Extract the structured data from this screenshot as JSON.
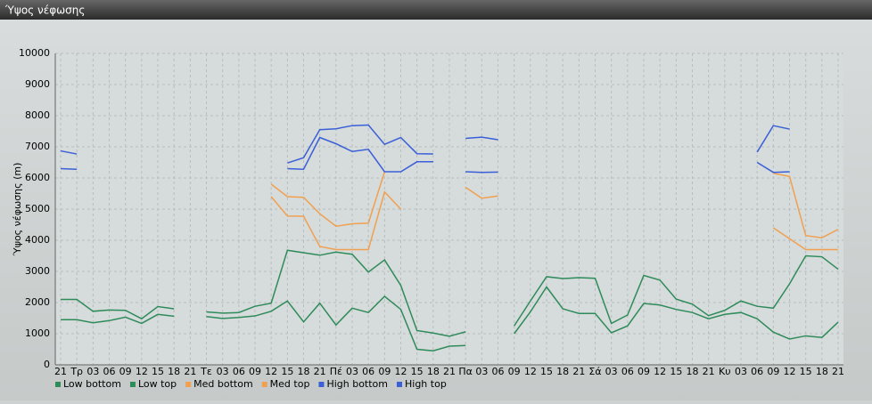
{
  "window_title": "Ύψος νέφωσης",
  "chart_data": {
    "type": "line",
    "y_label": "Ύψος νέφωσης (m)",
    "categories": [
      "21",
      "Τρ",
      "03",
      "06",
      "09",
      "12",
      "15",
      "18",
      "21",
      "Τε",
      "03",
      "06",
      "09",
      "12",
      "15",
      "18",
      "21",
      "Πέ",
      "03",
      "06",
      "09",
      "12",
      "15",
      "18",
      "21",
      "Πα",
      "03",
      "06",
      "09",
      "12",
      "15",
      "18",
      "21",
      "Σά",
      "03",
      "06",
      "09",
      "12",
      "15",
      "18",
      "21",
      "Κυ",
      "03",
      "06",
      "09",
      "12",
      "15",
      "18",
      "21"
    ],
    "series": [
      {
        "name": "Low bottom",
        "color": "#2e8b5a",
        "values": [
          1450,
          1450,
          1350,
          1420,
          1530,
          1330,
          1620,
          1560,
          null,
          1550,
          1490,
          1520,
          1570,
          1720,
          2050,
          1380,
          1980,
          1280,
          1820,
          1680,
          2200,
          1780,
          500,
          450,
          600,
          620,
          null,
          null,
          1000,
          1700,
          2500,
          1800,
          1650,
          1650,
          1030,
          1250,
          1970,
          1920,
          1780,
          1680,
          1480,
          1620,
          1680,
          1480,
          1050,
          830,
          930,
          880,
          1370
        ]
      },
      {
        "name": "Low top",
        "color": "#2e8b5a",
        "values": [
          2100,
          2100,
          1720,
          1760,
          1750,
          1480,
          1870,
          1800,
          null,
          1700,
          1660,
          1680,
          1880,
          1980,
          3680,
          3600,
          3520,
          3620,
          3550,
          2980,
          3370,
          2550,
          1100,
          1020,
          920,
          1060,
          null,
          null,
          1250,
          2050,
          2830,
          2770,
          2800,
          2780,
          1330,
          1600,
          2870,
          2720,
          2110,
          1950,
          1580,
          1750,
          2050,
          1880,
          1820,
          2600,
          3500,
          3470,
          3070
        ]
      },
      {
        "name": "Med bottom",
        "color": "#f0a050",
        "values": [
          null,
          null,
          null,
          null,
          null,
          null,
          null,
          null,
          null,
          null,
          null,
          null,
          null,
          5400,
          4780,
          4770,
          3800,
          3700,
          3700,
          3700,
          5550,
          5000,
          null,
          null,
          null,
          5700,
          5350,
          5420,
          null,
          null,
          null,
          null,
          null,
          null,
          null,
          null,
          null,
          null,
          null,
          null,
          null,
          null,
          null,
          null,
          4400,
          4050,
          3700,
          3700,
          3700
        ]
      },
      {
        "name": "Med top",
        "color": "#f0a050",
        "values": [
          null,
          null,
          null,
          null,
          null,
          null,
          null,
          null,
          null,
          null,
          null,
          null,
          null,
          5800,
          5400,
          5380,
          4850,
          4450,
          4530,
          4550,
          6200,
          null,
          null,
          null,
          null,
          null,
          null,
          null,
          null,
          null,
          null,
          null,
          null,
          null,
          null,
          null,
          null,
          null,
          null,
          null,
          null,
          null,
          null,
          null,
          6150,
          6050,
          4150,
          4080,
          4350
        ]
      },
      {
        "name": "High bottom",
        "color": "#3a5fd8",
        "values": [
          6300,
          6280,
          null,
          null,
          null,
          null,
          null,
          null,
          null,
          null,
          null,
          null,
          null,
          null,
          6300,
          6280,
          7300,
          7100,
          6850,
          6920,
          6200,
          6200,
          6520,
          6520,
          null,
          6200,
          6180,
          6190,
          null,
          null,
          null,
          null,
          null,
          null,
          null,
          null,
          null,
          null,
          null,
          null,
          null,
          null,
          null,
          6500,
          6180,
          6200,
          null,
          null,
          null
        ]
      },
      {
        "name": "High top",
        "color": "#3a5fd8",
        "values": [
          6870,
          6770,
          null,
          null,
          null,
          null,
          null,
          null,
          null,
          null,
          null,
          null,
          null,
          null,
          6480,
          6650,
          7550,
          7580,
          7680,
          7700,
          7080,
          7300,
          6780,
          6770,
          null,
          7270,
          7310,
          7230,
          null,
          null,
          null,
          null,
          null,
          null,
          null,
          null,
          null,
          null,
          null,
          null,
          null,
          null,
          null,
          6830,
          7680,
          7570,
          null,
          null,
          null
        ]
      }
    ],
    "ylim": [
      0,
      10000
    ],
    "yticks": [
      0,
      1000,
      2000,
      3000,
      4000,
      5000,
      6000,
      7000,
      8000,
      9000,
      10000
    ],
    "grid": true
  }
}
